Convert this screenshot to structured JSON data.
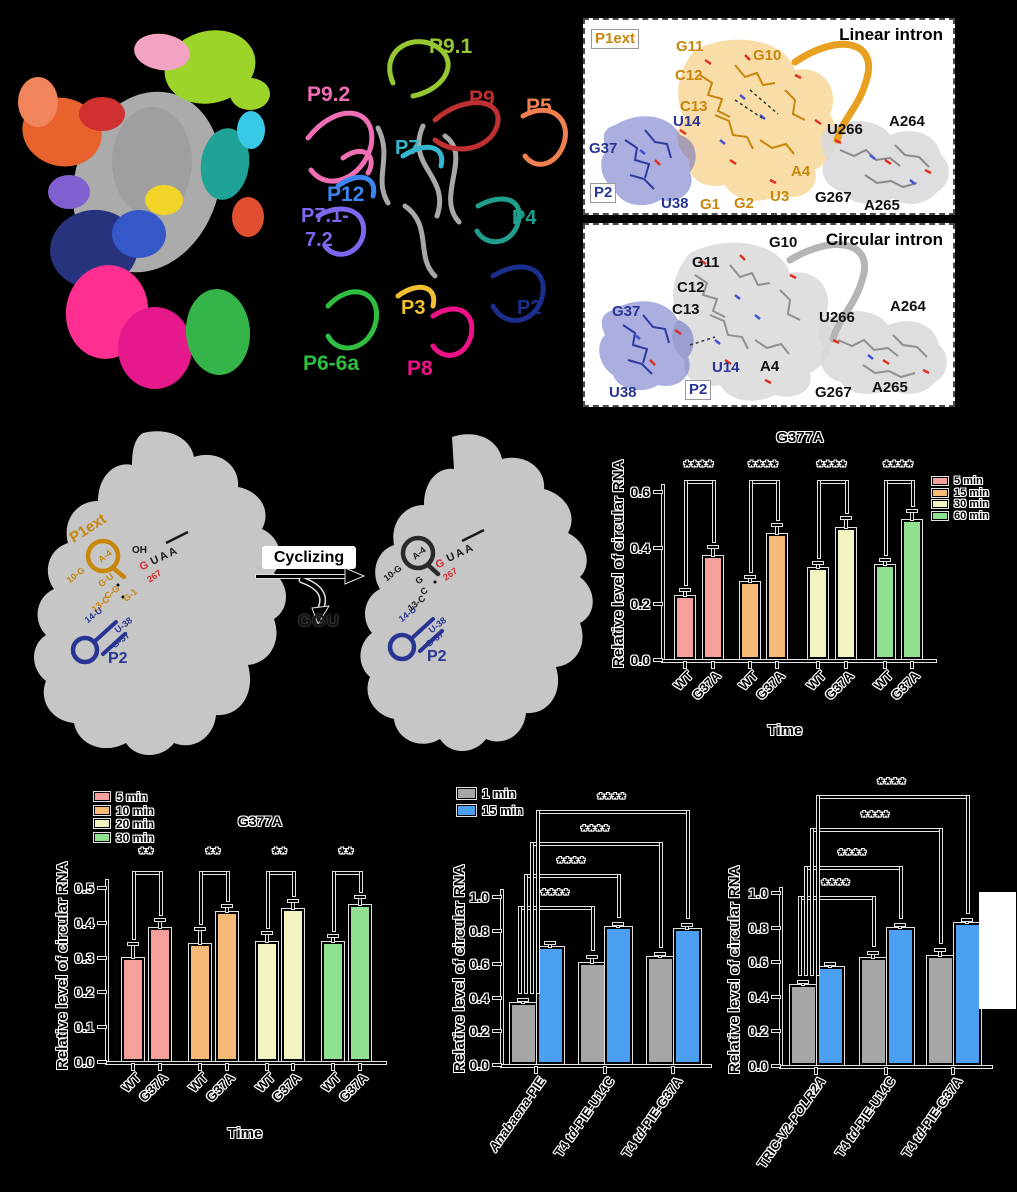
{
  "colors": {
    "background": "#000000",
    "silhouette_gray": "#C6C6C6",
    "p1ext_orange": "#C8860B",
    "p2_navy": "#283593",
    "splice_site_red": "#D03030",
    "time_5min": "#F5A09A",
    "time_15min": "#F7B977",
    "time_30min_pale": "#F3F3C2",
    "time_60min_green": "#8FE08F",
    "min1_gray": "#A6A6A6",
    "min15_blue": "#4A9FF0"
  },
  "panel_b": {
    "labels": [
      {
        "text": "P9.1",
        "color": "#96C832"
      },
      {
        "text": "P9.2",
        "color": "#F06EB4"
      },
      {
        "text": "P9",
        "color": "#C03030"
      },
      {
        "text": "P5",
        "color": "#F08050"
      },
      {
        "text": "P7",
        "color": "#35B8CF"
      },
      {
        "text": "P12",
        "color": "#3D85F0"
      },
      {
        "text": "P7.1-",
        "color": "#7B68EE"
      },
      {
        "text": "7.2",
        "color": "#7B68EE"
      },
      {
        "text": "P4",
        "color": "#1F9E8E"
      },
      {
        "text": "P3",
        "color": "#F0C030"
      },
      {
        "text": "P2",
        "color": "#1C2E8C"
      },
      {
        "text": "P6-6a",
        "color": "#2FBE3F"
      },
      {
        "text": "P8",
        "color": "#EE1289"
      }
    ]
  },
  "panel_c": {
    "linear": {
      "title": "Linear intron",
      "p1ext_box": "P1ext",
      "p2_box": "P2",
      "residues_orange": [
        "G11",
        "G10",
        "C12",
        "C13",
        "A4",
        "U3",
        "G1",
        "G2"
      ],
      "residues_blue": [
        "U14",
        "G37",
        "U38"
      ],
      "residues_black": [
        "U266",
        "A264",
        "G267",
        "A265"
      ]
    },
    "circular": {
      "title": "Circular intron",
      "p2_box": "P2",
      "residues_black": [
        "G10",
        "G11",
        "C12",
        "C13",
        "A4",
        "U266",
        "A264",
        "G267",
        "A265"
      ],
      "residues_blue": [
        "G37",
        "U38",
        "U14"
      ]
    }
  },
  "panel_d": {
    "cyclizing_label": "Cyclizing",
    "released_fragment": "GGU",
    "linear_diagram": {
      "p1ext_label": "P1ext",
      "p2_label": "P2",
      "oh_label": "OH",
      "circ_site_g": "G",
      "circ_site_num": "267",
      "exon_seq": "UAA",
      "pairs": [
        "10-G",
        "A-4",
        "G·U",
        "C-G",
        "13-C",
        "G-1",
        "14-U",
        "U-38",
        "G-37"
      ]
    },
    "circular_diagram": {
      "p2_label": "P2",
      "circ_site_g": "G",
      "circ_site_num": "267",
      "exon_seq": "UAA",
      "pairs": [
        "10-G",
        "A-4",
        "G",
        "C",
        "13-C",
        "14-U",
        "U-38",
        "G-37"
      ]
    }
  },
  "chart_data": [
    {
      "type": "bar",
      "title": "G377A",
      "ylabel": "Relative level of circular RNA",
      "xlabel": "Time",
      "ylim": [
        0,
        0.6
      ],
      "yticks": [
        "0.0",
        "0.2",
        "0.4",
        "0.6"
      ],
      "categories": [
        "WT",
        "G37A",
        "WT",
        "G37A",
        "WT",
        "G37A",
        "WT",
        "G37A"
      ],
      "values": [
        0.23,
        0.37,
        0.28,
        0.45,
        0.33,
        0.47,
        0.34,
        0.5
      ],
      "errors": [
        0.015,
        0.03,
        0.012,
        0.03,
        0.012,
        0.035,
        0.012,
        0.03
      ],
      "bar_colors": [
        "#F5A09A",
        "#F5A09A",
        "#F7B977",
        "#F7B977",
        "#F3F3C2",
        "#F3F3C2",
        "#8FE08F",
        "#8FE08F"
      ],
      "legend": [
        {
          "label": "5 min",
          "color": "#F5A09A"
        },
        {
          "label": "15 min",
          "color": "#F7B977"
        },
        {
          "label": "30 min",
          "color": "#F3F3C2"
        },
        {
          "label": "60 min",
          "color": "#8FE08F"
        }
      ],
      "pair_sig": [
        "****",
        "****",
        "****",
        "****"
      ]
    },
    {
      "type": "bar",
      "title": "G377A",
      "ylabel": "Relative level of circular RNA",
      "xlabel": "Time",
      "ylim": [
        0,
        0.5
      ],
      "yticks": [
        "0.0",
        "0.1",
        "0.2",
        "0.3",
        "0.4",
        "0.5"
      ],
      "categories": [
        "WT",
        "G37A",
        "WT",
        "G37A",
        "WT",
        "G37A",
        "WT",
        "G37A"
      ],
      "values": [
        0.3,
        0.385,
        0.34,
        0.43,
        0.345,
        0.44,
        0.345,
        0.45
      ],
      "errors": [
        0.035,
        0.02,
        0.04,
        0.015,
        0.022,
        0.02,
        0.015,
        0.02
      ],
      "bar_colors": [
        "#F5A09A",
        "#F5A09A",
        "#F7B977",
        "#F7B977",
        "#F3F3C2",
        "#F3F3C2",
        "#8FE08F",
        "#8FE08F"
      ],
      "legend": [
        {
          "label": "5 min",
          "color": "#F5A09A"
        },
        {
          "label": "10 min",
          "color": "#F7B977"
        },
        {
          "label": "20 min",
          "color": "#F3F3C2"
        },
        {
          "label": "30 min",
          "color": "#8FE08F"
        }
      ],
      "pair_sig": [
        "**",
        "**",
        "**",
        "**"
      ]
    },
    {
      "type": "bar",
      "title": "",
      "ylabel": "Relative level of circular RNA",
      "xlabel": "",
      "ylim": [
        0,
        1.0
      ],
      "yticks": [
        "0.0",
        "0.2",
        "0.4",
        "0.6",
        "0.8",
        "1.0"
      ],
      "categories": [
        [
          {
            "t": "Anabaena",
            "i": true
          },
          {
            "t": "-PIE",
            "i": false
          }
        ],
        [
          {
            "t": "T4 ",
            "i": false
          },
          {
            "t": "td",
            "i": true
          },
          {
            "t": "-PIE-U14C",
            "i": false
          }
        ],
        [
          {
            "t": "T4 ",
            "i": false
          },
          {
            "t": "td",
            "i": true
          },
          {
            "t": "-PIE-G37A",
            "i": false
          }
        ]
      ],
      "values": [
        0.37,
        0.7,
        0.61,
        0.82,
        0.645,
        0.81
      ],
      "errors": [
        0.01,
        0.02,
        0.025,
        0.012,
        0.01,
        0.02
      ],
      "bar_colors": [
        "#A6A6A6",
        "#4A9FF0",
        "#A6A6A6",
        "#4A9FF0",
        "#A6A6A6",
        "#4A9FF0"
      ],
      "legend": [
        {
          "label": "1 min",
          "color": "#A6A6A6"
        },
        {
          "label": "15 min",
          "color": "#4A9FF0"
        }
      ],
      "brackets": [
        {
          "from": 0,
          "to": 2,
          "stars": "****"
        },
        {
          "from": 0,
          "to": 3,
          "stars": "****"
        },
        {
          "from": 0,
          "to": 4,
          "stars": "****"
        },
        {
          "from": 0,
          "to": 5,
          "stars": "****"
        }
      ]
    },
    {
      "type": "bar",
      "title": "",
      "ylabel": "Relative level of circular RNA",
      "xlabel": "",
      "ylim": [
        0,
        1.0
      ],
      "yticks": [
        "0.0",
        "0.2",
        "0.4",
        "0.6",
        "0.8",
        "1.0"
      ],
      "categories": [
        [
          {
            "t": "TRIC-V2-",
            "i": false
          },
          {
            "t": "POLR2A",
            "i": true
          }
        ],
        [
          {
            "t": "T4 ",
            "i": false
          },
          {
            "t": "td",
            "i": true
          },
          {
            "t": "-PIE-U14C",
            "i": false
          }
        ],
        [
          {
            "t": "T4 ",
            "i": false
          },
          {
            "t": "td",
            "i": true
          },
          {
            "t": "-PIE-G37A",
            "i": false
          }
        ]
      ],
      "values": [
        0.47,
        0.575,
        0.625,
        0.8,
        0.635,
        0.825
      ],
      "errors": [
        0.01,
        0.008,
        0.022,
        0.01,
        0.028,
        0.012
      ],
      "bar_colors": [
        "#A6A6A6",
        "#4A9FF0",
        "#A6A6A6",
        "#4A9FF0",
        "#A6A6A6",
        "#4A9FF0"
      ],
      "legend": [],
      "brackets": [
        {
          "from": 0,
          "to": 2,
          "stars": "****"
        },
        {
          "from": 0,
          "to": 3,
          "stars": "****"
        },
        {
          "from": 0,
          "to": 4,
          "stars": "****"
        },
        {
          "from": 0,
          "to": 5,
          "stars": "****"
        }
      ]
    }
  ]
}
